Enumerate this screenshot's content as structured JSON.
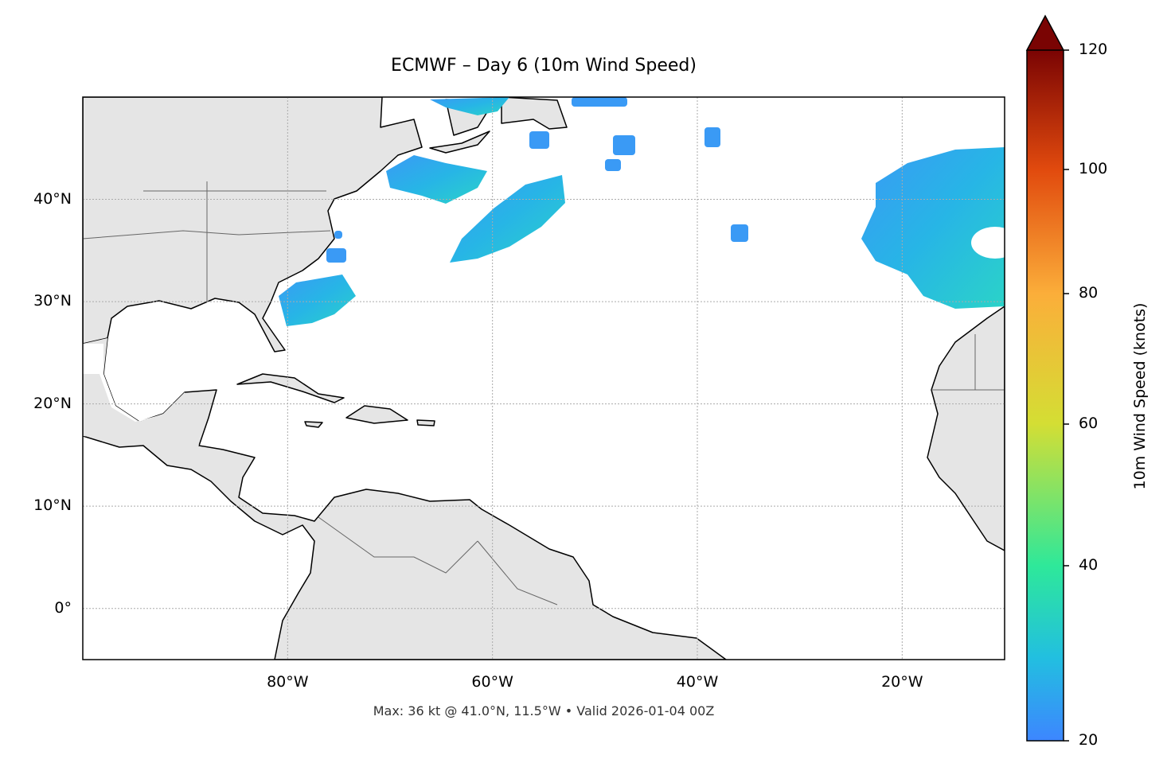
{
  "title": "ECMWF – Day 6 (10m Wind Speed)",
  "footer": "Max: 36 kt @ 41.0°N, 11.5°W • Valid 2026-01-04 00Z",
  "map": {
    "projection": "PlateCarree",
    "lon_range": [
      -100,
      -10
    ],
    "lat_range": [
      -5,
      50
    ],
    "land_color": "#e5e5e5",
    "coastline_color": "#000000",
    "border_color": "#666666",
    "gridlines": "dotted",
    "lon_ticks": [
      {
        "value": -80,
        "label": "80°W"
      },
      {
        "value": -60,
        "label": "60°W"
      },
      {
        "value": -40,
        "label": "40°W"
      },
      {
        "value": -20,
        "label": "20°W"
      }
    ],
    "lat_ticks": [
      {
        "value": 0,
        "label": "0°"
      },
      {
        "value": 10,
        "label": "10°N"
      },
      {
        "value": 20,
        "label": "20°N"
      },
      {
        "value": 30,
        "label": "30°N"
      },
      {
        "value": 40,
        "label": "40°N"
      }
    ],
    "max_wind": {
      "value_kt": 36,
      "lat": 41.0,
      "lon": -11.5
    }
  },
  "colorbar": {
    "label": "10m Wind Speed (knots)",
    "min": 20,
    "max": 120,
    "extend": "max",
    "colormap": "turbo",
    "ticks": [
      {
        "value": 20,
        "label": "20"
      },
      {
        "value": 40,
        "label": "40"
      },
      {
        "value": 60,
        "label": "60"
      },
      {
        "value": 80,
        "label": "80"
      },
      {
        "value": 100,
        "label": "100"
      },
      {
        "value": 120,
        "label": "120"
      }
    ],
    "colors": {
      "low": "#3d86ff",
      "c30": "#22bfe0",
      "c40": "#2ee89a",
      "c60": "#d4de34",
      "c80": "#fbae3a",
      "c100": "#e14a0e",
      "high": "#7a0403"
    }
  }
}
